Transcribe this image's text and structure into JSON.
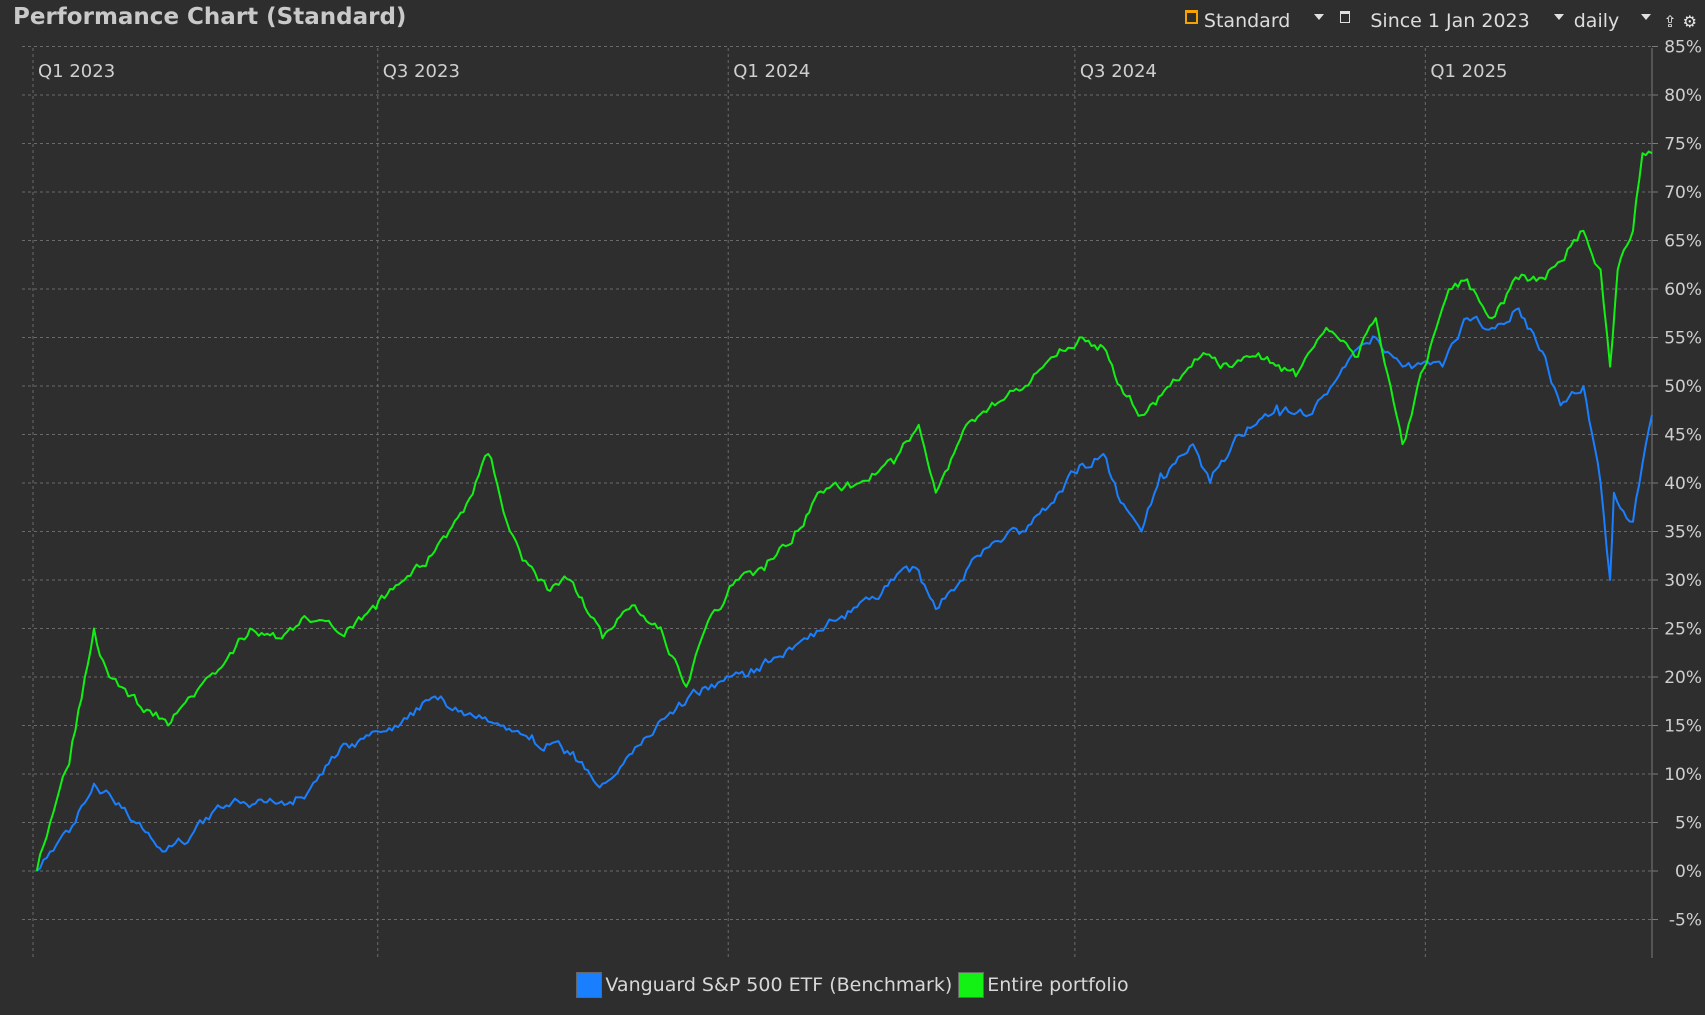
{
  "window": {
    "title": "Performance Chart (Standard)"
  },
  "toolbar": {
    "view_label": "Standard",
    "view_icon": "chart-view-icon",
    "period_icon": "calendar-icon",
    "period_label": "Since 1 Jan 2023",
    "interval_label": "daily",
    "export_icon": "export-icon",
    "settings_icon": "gear-icon"
  },
  "colors": {
    "background": "#2e2e2e",
    "grid": "#6a6a6a",
    "benchmark": "#1a7fff",
    "portfolio": "#13f013",
    "accent": "#f5a300"
  },
  "chart_data": {
    "type": "line",
    "title": "",
    "xlabel": "",
    "ylabel": "",
    "x_ticks": [
      "Q1 2023",
      "Q3 2023",
      "Q1 2024",
      "Q3 2024",
      "Q1 2025"
    ],
    "y_ticks": [
      "85%",
      "80%",
      "75%",
      "70%",
      "65%",
      "60%",
      "55%",
      "50%",
      "45%",
      "40%",
      "35%",
      "30%",
      "25%",
      "20%",
      "15%",
      "10%",
      "5%",
      "0%",
      "-5%"
    ],
    "ylim": [
      -5,
      85
    ],
    "xlim": [
      "2023-01-01",
      "2025-04-30"
    ],
    "grid": true,
    "legend_position": "bottom",
    "series": [
      {
        "name": "Vanguard S&P 500 ETF (Benchmark)",
        "color": "#1a7fff",
        "points": [
          [
            "2023-01-03",
            0
          ],
          [
            "2023-01-10",
            2
          ],
          [
            "2023-01-20",
            4
          ],
          [
            "2023-02-02",
            9
          ],
          [
            "2023-02-15",
            7
          ],
          [
            "2023-03-01",
            4
          ],
          [
            "2023-03-10",
            2
          ],
          [
            "2023-03-20",
            3
          ],
          [
            "2023-04-05",
            6
          ],
          [
            "2023-04-20",
            7
          ],
          [
            "2023-05-10",
            7
          ],
          [
            "2023-05-25",
            8
          ],
          [
            "2023-06-10",
            12
          ],
          [
            "2023-06-25",
            14
          ],
          [
            "2023-07-10",
            15
          ],
          [
            "2023-07-31",
            18
          ],
          [
            "2023-08-20",
            16
          ],
          [
            "2023-09-05",
            15
          ],
          [
            "2023-09-20",
            14
          ],
          [
            "2023-10-10",
            12
          ],
          [
            "2023-10-27",
            9
          ],
          [
            "2023-11-10",
            12
          ],
          [
            "2023-11-30",
            16
          ],
          [
            "2023-12-20",
            19
          ],
          [
            "2024-01-10",
            20
          ],
          [
            "2024-01-25",
            22
          ],
          [
            "2024-02-10",
            24
          ],
          [
            "2024-02-28",
            26
          ],
          [
            "2024-03-15",
            28
          ],
          [
            "2024-03-28",
            30
          ],
          [
            "2024-04-10",
            31
          ],
          [
            "2024-04-19",
            27
          ],
          [
            "2024-05-05",
            31
          ],
          [
            "2024-05-20",
            34
          ],
          [
            "2024-06-05",
            35
          ],
          [
            "2024-06-20",
            38
          ],
          [
            "2024-07-05",
            42
          ],
          [
            "2024-07-16",
            43
          ],
          [
            "2024-07-25",
            38
          ],
          [
            "2024-08-05",
            35
          ],
          [
            "2024-08-15",
            41
          ],
          [
            "2024-09-01",
            44
          ],
          [
            "2024-09-10",
            40
          ],
          [
            "2024-09-25",
            45
          ],
          [
            "2024-10-15",
            48
          ],
          [
            "2024-11-01",
            47
          ],
          [
            "2024-11-20",
            52
          ],
          [
            "2024-12-06",
            55
          ],
          [
            "2024-12-20",
            52
          ],
          [
            "2025-01-10",
            52
          ],
          [
            "2025-01-23",
            57
          ],
          [
            "2025-02-05",
            56
          ],
          [
            "2025-02-19",
            58
          ],
          [
            "2025-03-05",
            53
          ],
          [
            "2025-03-13",
            48
          ],
          [
            "2025-03-25",
            50
          ],
          [
            "2025-04-03",
            40
          ],
          [
            "2025-04-08",
            30
          ],
          [
            "2025-04-10",
            39
          ],
          [
            "2025-04-20",
            36
          ],
          [
            "2025-04-25",
            42
          ],
          [
            "2025-04-30",
            47
          ]
        ]
      },
      {
        "name": "Entire portfolio",
        "color": "#13f013",
        "points": [
          [
            "2023-01-03",
            0
          ],
          [
            "2023-01-10",
            5
          ],
          [
            "2023-01-20",
            11
          ],
          [
            "2023-02-02",
            25
          ],
          [
            "2023-02-10",
            20
          ],
          [
            "2023-02-20",
            18
          ],
          [
            "2023-03-05",
            16
          ],
          [
            "2023-03-13",
            15
          ],
          [
            "2023-03-25",
            18
          ],
          [
            "2023-04-10",
            21
          ],
          [
            "2023-04-25",
            25
          ],
          [
            "2023-05-10",
            24
          ],
          [
            "2023-05-25",
            26
          ],
          [
            "2023-06-15",
            25
          ],
          [
            "2023-06-30",
            27
          ],
          [
            "2023-07-15",
            30
          ],
          [
            "2023-07-31",
            33
          ],
          [
            "2023-08-15",
            37
          ],
          [
            "2023-08-28",
            43
          ],
          [
            "2023-09-05",
            37
          ],
          [
            "2023-09-15",
            32
          ],
          [
            "2023-09-28",
            29
          ],
          [
            "2023-10-10",
            30
          ],
          [
            "2023-10-27",
            24
          ],
          [
            "2023-11-10",
            27
          ],
          [
            "2023-11-25",
            25
          ],
          [
            "2023-12-10",
            19
          ],
          [
            "2023-12-20",
            25
          ],
          [
            "2024-01-05",
            30
          ],
          [
            "2024-01-20",
            31
          ],
          [
            "2024-02-05",
            35
          ],
          [
            "2024-02-20",
            39
          ],
          [
            "2024-03-10",
            40
          ],
          [
            "2024-03-28",
            42
          ],
          [
            "2024-04-10",
            46
          ],
          [
            "2024-04-19",
            39
          ],
          [
            "2024-05-05",
            46
          ],
          [
            "2024-05-20",
            48
          ],
          [
            "2024-06-05",
            50
          ],
          [
            "2024-06-20",
            53
          ],
          [
            "2024-07-05",
            55
          ],
          [
            "2024-07-16",
            54
          ],
          [
            "2024-07-25",
            50
          ],
          [
            "2024-08-05",
            47
          ],
          [
            "2024-08-20",
            50
          ],
          [
            "2024-09-05",
            53
          ],
          [
            "2024-09-20",
            52
          ],
          [
            "2024-10-10",
            53
          ],
          [
            "2024-10-25",
            51
          ],
          [
            "2024-11-10",
            56
          ],
          [
            "2024-11-25",
            53
          ],
          [
            "2024-12-06",
            57
          ],
          [
            "2024-12-20",
            44
          ],
          [
            "2025-01-05",
            55
          ],
          [
            "2025-01-15",
            60
          ],
          [
            "2025-01-23",
            61
          ],
          [
            "2025-02-05",
            57
          ],
          [
            "2025-02-19",
            61
          ],
          [
            "2025-03-05",
            61
          ],
          [
            "2025-03-15",
            63
          ],
          [
            "2025-03-25",
            66
          ],
          [
            "2025-04-03",
            62
          ],
          [
            "2025-04-08",
            52
          ],
          [
            "2025-04-12",
            62
          ],
          [
            "2025-04-20",
            66
          ],
          [
            "2025-04-25",
            74
          ],
          [
            "2025-04-30",
            74
          ]
        ]
      }
    ]
  }
}
